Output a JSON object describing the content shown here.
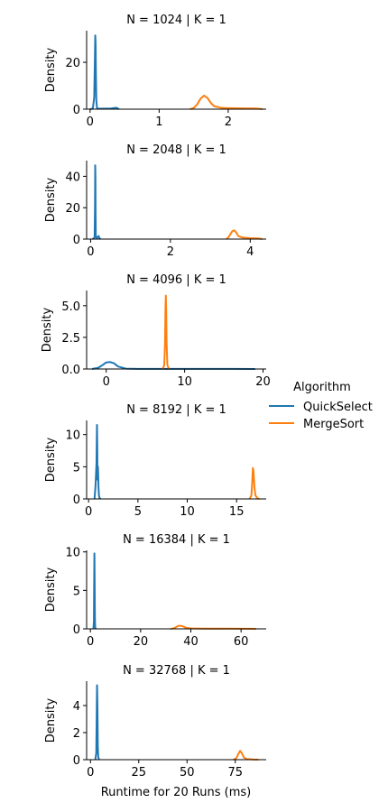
{
  "legend": {
    "title": "Algorithm",
    "placement": "right",
    "entries": [
      {
        "name": "QuickSelect",
        "color": "#1f77b4"
      },
      {
        "name": "MergeSort",
        "color": "#ff7f0e"
      }
    ]
  },
  "shared_xlabel": "Runtime for 20 Runs (ms)",
  "chart_data": [
    {
      "type": "line",
      "title": "N = 1024 | K = 1",
      "xlabel": "",
      "ylabel": "Density",
      "xlim": [
        -0.05,
        2.55
      ],
      "ylim": [
        0,
        33.5
      ],
      "xticks": [
        0,
        1,
        2
      ],
      "yticks": [
        0,
        20
      ],
      "series": [
        {
          "name": "QuickSelect",
          "color": "#1f77b4",
          "x": [
            0.0,
            0.04,
            0.06,
            0.07,
            0.075,
            0.08,
            0.085,
            0.09,
            0.1,
            0.12,
            0.2,
            0.3,
            0.38,
            0.42
          ],
          "y": [
            0.0,
            0.3,
            5.0,
            22.0,
            31.5,
            28.0,
            14.0,
            4.0,
            0.5,
            0.2,
            0.25,
            0.3,
            0.6,
            0.0
          ]
        },
        {
          "name": "MergeSort",
          "color": "#ff7f0e",
          "x": [
            1.45,
            1.5,
            1.55,
            1.6,
            1.65,
            1.7,
            1.75,
            1.8,
            1.9,
            2.0,
            2.2,
            2.4,
            2.5
          ],
          "y": [
            0.0,
            0.5,
            2.0,
            4.5,
            5.8,
            4.8,
            2.6,
            1.2,
            0.6,
            0.45,
            0.35,
            0.3,
            0.0
          ]
        }
      ]
    },
    {
      "type": "line",
      "title": "N = 2048 | K = 1",
      "xlabel": "",
      "ylabel": "Density",
      "xlim": [
        -0.1,
        4.4
      ],
      "ylim": [
        0,
        50
      ],
      "xticks": [
        0,
        2,
        4
      ],
      "yticks": [
        0,
        20,
        40
      ],
      "series": [
        {
          "name": "QuickSelect",
          "color": "#1f77b4",
          "x": [
            0.05,
            0.1,
            0.11,
            0.115,
            0.12,
            0.125,
            0.13,
            0.15,
            0.2,
            0.22,
            0.25
          ],
          "y": [
            0.0,
            1.0,
            20.0,
            47.0,
            40.0,
            15.0,
            2.0,
            0.5,
            2.0,
            0.5,
            0.0
          ]
        },
        {
          "name": "MergeSort",
          "color": "#ff7f0e",
          "x": [
            3.4,
            3.45,
            3.5,
            3.55,
            3.6,
            3.65,
            3.7,
            3.8,
            4.0,
            4.2,
            4.3
          ],
          "y": [
            0.0,
            1.0,
            3.0,
            5.0,
            5.6,
            4.2,
            2.0,
            1.0,
            0.6,
            0.4,
            0.0
          ]
        }
      ]
    },
    {
      "type": "line",
      "title": "N = 4096 | K = 1",
      "xlabel": "",
      "ylabel": "Density",
      "xlim": [
        -2.5,
        20.4
      ],
      "ylim": [
        0,
        6.2
      ],
      "xticks": [
        0,
        10,
        20
      ],
      "yticks": [
        0.0,
        2.5,
        5.0
      ],
      "series": [
        {
          "name": "QuickSelect",
          "color": "#1f77b4",
          "x": [
            -1.8,
            -1.0,
            -0.5,
            0.0,
            0.5,
            1.0,
            1.5,
            2.5,
            4.0,
            8.0,
            12.0,
            16.0,
            19.0
          ],
          "y": [
            0.0,
            0.1,
            0.3,
            0.52,
            0.55,
            0.45,
            0.2,
            0.03,
            0.01,
            0.01,
            0.01,
            0.005,
            0.0
          ]
        },
        {
          "name": "MergeSort",
          "color": "#ff7f0e",
          "x": [
            7.2,
            7.4,
            7.5,
            7.55,
            7.6,
            7.65,
            7.7,
            7.8,
            8.0
          ],
          "y": [
            0.0,
            0.3,
            2.0,
            4.5,
            5.8,
            4.6,
            2.0,
            0.3,
            0.0
          ]
        }
      ]
    },
    {
      "type": "line",
      "title": "N = 8192 | K = 1",
      "xlabel": "",
      "ylabel": "Density",
      "xlim": [
        -0.2,
        18.0
      ],
      "ylim": [
        0,
        12.2
      ],
      "xticks": [
        0,
        5,
        10,
        15
      ],
      "yticks": [
        0,
        5,
        10
      ],
      "series": [
        {
          "name": "QuickSelect",
          "color": "#1f77b4",
          "x": [
            0.6,
            0.7,
            0.8,
            0.85,
            0.88,
            0.9,
            0.95,
            1.0,
            1.05,
            1.1,
            1.2
          ],
          "y": [
            0.0,
            2.0,
            5.5,
            11.5,
            8.0,
            3.0,
            5.0,
            2.0,
            0.5,
            0.2,
            0.0
          ]
        },
        {
          "name": "MergeSort",
          "color": "#ff7f0e",
          "x": [
            16.3,
            16.5,
            16.6,
            16.65,
            16.7,
            16.8,
            16.9,
            17.1,
            17.3
          ],
          "y": [
            0.0,
            0.5,
            3.0,
            4.8,
            4.5,
            2.0,
            0.6,
            0.1,
            0.0
          ]
        }
      ]
    },
    {
      "type": "line",
      "title": "N = 16384 | K = 1",
      "xlabel": "",
      "ylabel": "Density",
      "xlim": [
        -1.5,
        70.0
      ],
      "ylim": [
        0,
        10.2
      ],
      "xticks": [
        0,
        20,
        40,
        60
      ],
      "yticks": [
        0,
        5,
        10
      ],
      "series": [
        {
          "name": "QuickSelect",
          "color": "#1f77b4",
          "x": [
            1.2,
            1.4,
            1.5,
            1.6,
            1.7,
            1.8,
            1.9,
            2.1
          ],
          "y": [
            0.0,
            1.0,
            6.0,
            9.8,
            6.0,
            1.5,
            0.3,
            0.0
          ]
        },
        {
          "name": "MergeSort",
          "color": "#ff7f0e",
          "x": [
            32.0,
            33.0,
            34.0,
            35.0,
            36.0,
            37.0,
            38.0,
            40.0,
            45.0,
            55.0,
            62.0,
            66.0
          ],
          "y": [
            0.0,
            0.05,
            0.2,
            0.38,
            0.4,
            0.3,
            0.15,
            0.06,
            0.03,
            0.03,
            0.02,
            0.0
          ]
        }
      ]
    },
    {
      "type": "line",
      "title": "N = 32768 | K = 1",
      "xlabel": "Runtime for 20 Runs (ms)",
      "ylabel": "Density",
      "xlim": [
        -2.0,
        91.0
      ],
      "ylim": [
        0,
        5.8
      ],
      "xticks": [
        0,
        25,
        50,
        75
      ],
      "yticks": [
        0,
        2,
        4
      ],
      "series": [
        {
          "name": "QuickSelect",
          "color": "#1f77b4",
          "x": [
            2.5,
            3.0,
            3.2,
            3.4,
            3.6,
            3.8,
            4.0,
            4.5
          ],
          "y": [
            0.0,
            0.5,
            3.0,
            5.5,
            4.0,
            1.0,
            0.2,
            0.0
          ]
        },
        {
          "name": "MergeSort",
          "color": "#ff7f0e",
          "x": [
            74.0,
            75.5,
            76.5,
            77.5,
            78.5,
            79.5,
            81.0,
            84.0,
            87.0
          ],
          "y": [
            0.0,
            0.1,
            0.4,
            0.65,
            0.45,
            0.15,
            0.05,
            0.02,
            0.0
          ]
        }
      ]
    }
  ]
}
